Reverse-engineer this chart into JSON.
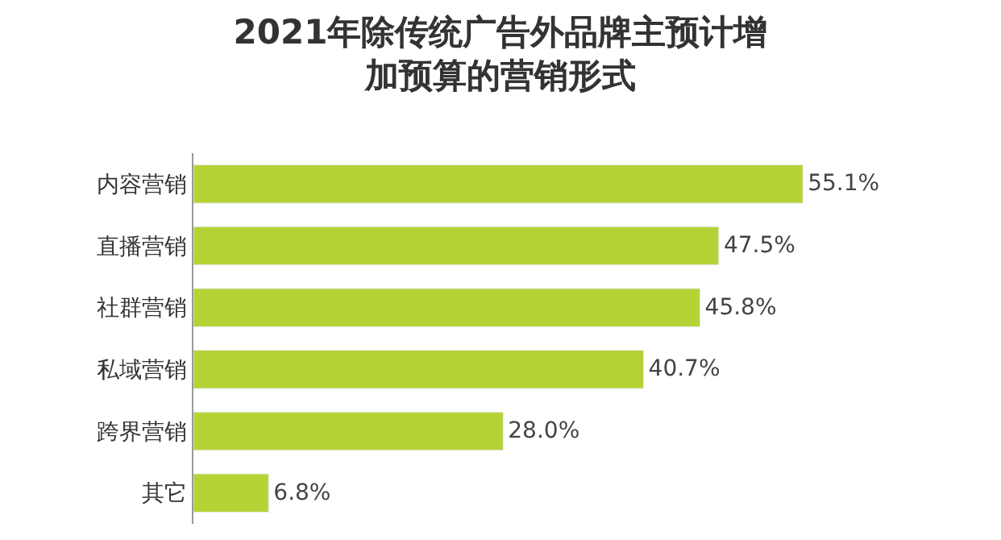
{
  "chart_data": {
    "type": "bar",
    "orientation": "horizontal",
    "title": "2021年除传统广告外品牌主预计增加预算的营销形式",
    "categories": [
      "内容营销",
      "直播营销",
      "社群营销",
      "私域营销",
      "跨界营销",
      "其它"
    ],
    "values": [
      55.1,
      47.5,
      45.8,
      40.7,
      28.0,
      6.8
    ],
    "value_labels": [
      "55.1%",
      "47.5%",
      "45.8%",
      "40.7%",
      "28.0%",
      "6.8%"
    ],
    "color": "#b5d334"
  }
}
